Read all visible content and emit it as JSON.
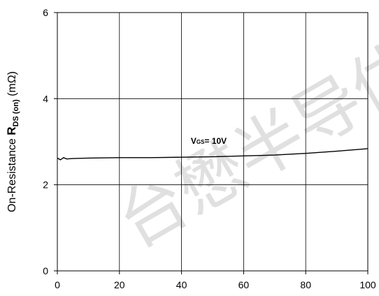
{
  "chart_data": {
    "type": "line",
    "title": "",
    "xlabel": "",
    "ylabel": {
      "prefix": "On-Resistance ",
      "symbol": "R",
      "subscript": "DS (on)",
      "unit": " (mΩ)"
    },
    "xlim": [
      0,
      100
    ],
    "ylim": [
      0,
      6
    ],
    "xticks": [
      "0",
      "20",
      "40",
      "60",
      "80",
      "100"
    ],
    "yticks": [
      "0",
      "2",
      "4",
      "6"
    ],
    "grid": true,
    "series": [
      {
        "name": "VGS= 10V",
        "color": "#000000",
        "x": [
          0,
          1,
          2,
          3,
          5,
          10,
          20,
          30,
          40,
          50,
          60,
          70,
          80,
          90,
          100
        ],
        "y": [
          2.62,
          2.58,
          2.63,
          2.6,
          2.61,
          2.62,
          2.63,
          2.63,
          2.64,
          2.65,
          2.67,
          2.69,
          2.73,
          2.78,
          2.84
        ]
      }
    ],
    "annotations": [
      {
        "main": "V",
        "sub": "GS",
        "rest": "= 10V",
        "x": 43,
        "y": 2.95
      }
    ]
  },
  "watermark": {
    "text": "台懋半导体"
  }
}
